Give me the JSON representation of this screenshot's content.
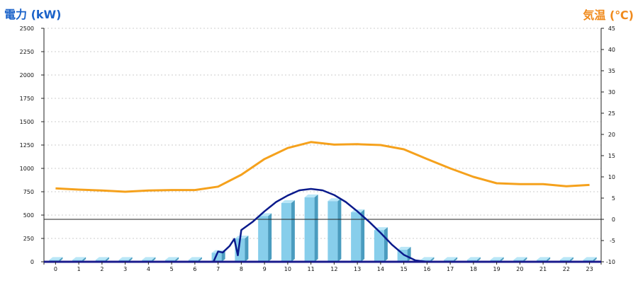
{
  "chart_data": {
    "type": "bar",
    "left_axis_label": "電力 (kW)",
    "right_axis_label": "気温 (℃)",
    "categories": [
      "0",
      "1",
      "2",
      "3",
      "4",
      "5",
      "6",
      "7",
      "8",
      "9",
      "10",
      "11",
      "12",
      "13",
      "14",
      "15",
      "16",
      "17",
      "18",
      "19",
      "20",
      "21",
      "22",
      "23"
    ],
    "left_axis": {
      "min": 0,
      "max": 2500,
      "ticks": [
        "0",
        "250",
        "500",
        "750",
        "1000",
        "1250",
        "1500",
        "1750",
        "2000",
        "2250",
        "2500"
      ]
    },
    "right_axis": {
      "min": -10,
      "max": 45,
      "ticks": [
        "-10",
        "-5",
        "0",
        "5",
        "10",
        "15",
        "20",
        "25",
        "30",
        "35",
        "40",
        "45"
      ]
    },
    "grid": "horizontal-dotted",
    "bar_series": {
      "axis": "left",
      "color": "#87ceeb",
      "values": [
        20,
        20,
        20,
        20,
        20,
        20,
        20,
        95,
        250,
        490,
        630,
        690,
        650,
        530,
        340,
        130,
        20,
        20,
        20,
        20,
        20,
        20,
        20,
        20
      ]
    },
    "line_series_temp": {
      "axis": "right",
      "color": "#f5a11c",
      "x": [
        0,
        1,
        2,
        3,
        4,
        5,
        6,
        7,
        8,
        9,
        10,
        11,
        12,
        13,
        14,
        15,
        16,
        17,
        18,
        19,
        20,
        21,
        22,
        23
      ],
      "values": [
        7.3,
        7.0,
        6.8,
        6.5,
        6.8,
        6.9,
        6.9,
        7.7,
        10.5,
        14.2,
        16.8,
        18.2,
        17.6,
        17.7,
        17.5,
        16.5,
        14.2,
        12.0,
        10.0,
        8.5,
        8.3,
        8.3,
        7.8,
        8.1
      ]
    },
    "line_series_power": {
      "axis": "left",
      "color": "#0a1a8c",
      "x": [
        0,
        6.8,
        7.0,
        7.2,
        7.5,
        7.7,
        7.85,
        8.0,
        8.5,
        9,
        9.5,
        10,
        10.5,
        11,
        11.5,
        12,
        12.5,
        13,
        13.5,
        14,
        14.5,
        15,
        15.5,
        16,
        23
      ],
      "values": [
        0,
        0,
        110,
        100,
        170,
        245,
        70,
        340,
        430,
        540,
        640,
        710,
        765,
        780,
        765,
        715,
        640,
        540,
        430,
        310,
        180,
        75,
        15,
        0,
        0
      ]
    }
  }
}
